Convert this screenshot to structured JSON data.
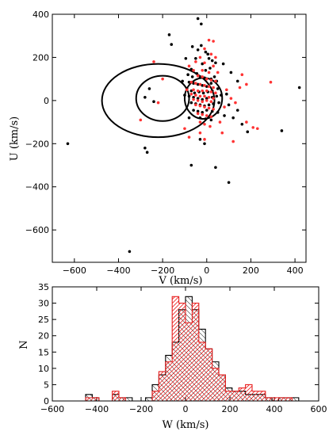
{
  "chart_data": [
    {
      "type": "scatter",
      "xlabel": "V (km/s)",
      "ylabel": "U (km/s)",
      "xlim": [
        -700,
        450
      ],
      "ylim": [
        -750,
        400
      ],
      "xticks": [
        -600,
        -400,
        -200,
        0,
        200,
        400
      ],
      "yticks": [
        -600,
        -400,
        -200,
        0,
        200,
        400
      ],
      "grid": false,
      "colors": {
        "black": "#000000",
        "red": "#ff3333"
      },
      "ellipses": [
        {
          "cx": -220,
          "cy": 0,
          "rx": 255,
          "ry": 170
        },
        {
          "cx": -200,
          "cy": 10,
          "rx": 120,
          "ry": 105
        },
        {
          "cx": -15,
          "cy": 10,
          "rx": 85,
          "ry": 95
        }
      ],
      "series": [
        {
          "color": "black",
          "points": [
            [
              -40,
              380
            ],
            [
              -25,
              355
            ],
            [
              -170,
              305
            ],
            [
              -160,
              260
            ],
            [
              -25,
              255
            ],
            [
              -65,
              250
            ],
            [
              -40,
              235
            ],
            [
              -5,
              225
            ],
            [
              5,
              215
            ],
            [
              -95,
              195
            ],
            [
              -50,
              195
            ],
            [
              10,
              195
            ],
            [
              25,
              185
            ],
            [
              -20,
              170
            ],
            [
              40,
              175
            ],
            [
              -70,
              145
            ],
            [
              -5,
              140
            ],
            [
              15,
              150
            ],
            [
              -85,
              120
            ],
            [
              -65,
              110
            ],
            [
              -45,
              125
            ],
            [
              -30,
              110
            ],
            [
              -10,
              105
            ],
            [
              20,
              100
            ],
            [
              35,
              110
            ],
            [
              -110,
              90
            ],
            [
              -80,
              85
            ],
            [
              -60,
              80
            ],
            [
              -40,
              75
            ],
            [
              -20,
              70
            ],
            [
              0,
              65
            ],
            [
              20,
              80
            ],
            [
              45,
              90
            ],
            [
              -90,
              55
            ],
            [
              -70,
              45
            ],
            [
              -55,
              35
            ],
            [
              -35,
              40
            ],
            [
              -15,
              35
            ],
            [
              5,
              40
            ],
            [
              25,
              45
            ],
            [
              50,
              55
            ],
            [
              -100,
              25
            ],
            [
              -80,
              20
            ],
            [
              -60,
              15
            ],
            [
              -40,
              10
            ],
            [
              -20,
              5
            ],
            [
              0,
              10
            ],
            [
              25,
              15
            ],
            [
              45,
              20
            ],
            [
              65,
              25
            ],
            [
              -70,
              -10
            ],
            [
              -50,
              -15
            ],
            [
              -30,
              -20
            ],
            [
              -10,
              -25
            ],
            [
              10,
              -20
            ],
            [
              30,
              -15
            ],
            [
              55,
              -10
            ],
            [
              -60,
              -45
            ],
            [
              -40,
              -50
            ],
            [
              -20,
              -55
            ],
            [
              0,
              -45
            ],
            [
              25,
              -50
            ],
            [
              50,
              -55
            ],
            [
              -30,
              -80
            ],
            [
              -5,
              -85
            ],
            [
              20,
              -90
            ],
            [
              -80,
              -80
            ],
            [
              80,
              -70
            ],
            [
              120,
              -80
            ],
            [
              -260,
              55
            ],
            [
              -280,
              15
            ],
            [
              -240,
              -5
            ],
            [
              90,
              30
            ],
            [
              100,
              -20
            ],
            [
              140,
              -45
            ],
            [
              160,
              -110
            ],
            [
              185,
              -145
            ],
            [
              340,
              -140
            ],
            [
              420,
              60
            ],
            [
              -630,
              -200
            ],
            [
              -280,
              -220
            ],
            [
              -270,
              -240
            ],
            [
              -70,
              -300
            ],
            [
              40,
              -310
            ],
            [
              100,
              -380
            ],
            [
              -350,
              -700
            ],
            [
              -10,
              -200
            ],
            [
              -30,
              -180
            ],
            [
              140,
              90
            ],
            [
              110,
              130
            ],
            [
              75,
              170
            ]
          ]
        },
        {
          "color": "red",
          "points": [
            [
              10,
              280
            ],
            [
              30,
              275
            ],
            [
              -10,
              240
            ],
            [
              20,
              215
            ],
            [
              -30,
              200
            ],
            [
              40,
              200
            ],
            [
              -50,
              180
            ],
            [
              -10,
              175
            ],
            [
              30,
              160
            ],
            [
              -80,
              160
            ],
            [
              -60,
              140
            ],
            [
              -20,
              140
            ],
            [
              10,
              130
            ],
            [
              50,
              130
            ],
            [
              -40,
              115
            ],
            [
              -20,
              110
            ],
            [
              0,
              100
            ],
            [
              20,
              95
            ],
            [
              40,
              90
            ],
            [
              -70,
              85
            ],
            [
              -50,
              80
            ],
            [
              -30,
              75
            ],
            [
              -10,
              70
            ],
            [
              10,
              65
            ],
            [
              30,
              60
            ],
            [
              -90,
              50
            ],
            [
              -60,
              50
            ],
            [
              -40,
              45
            ],
            [
              -20,
              45
            ],
            [
              0,
              45
            ],
            [
              20,
              40
            ],
            [
              40,
              35
            ],
            [
              -70,
              30
            ],
            [
              -50,
              25
            ],
            [
              -30,
              20
            ],
            [
              -10,
              20
            ],
            [
              10,
              15
            ],
            [
              30,
              10
            ],
            [
              -60,
              5
            ],
            [
              -40,
              0
            ],
            [
              -20,
              -5
            ],
            [
              0,
              0
            ],
            [
              20,
              -5
            ],
            [
              -50,
              -20
            ],
            [
              -30,
              -25
            ],
            [
              -10,
              -30
            ],
            [
              10,
              -35
            ],
            [
              30,
              -40
            ],
            [
              -40,
              -60
            ],
            [
              -20,
              -65
            ],
            [
              0,
              -70
            ],
            [
              20,
              -75
            ],
            [
              -30,
              -100
            ],
            [
              -10,
              -110
            ],
            [
              15,
              -120
            ],
            [
              60,
              -100
            ],
            [
              -240,
              180
            ],
            [
              -200,
              100
            ],
            [
              -220,
              -10
            ],
            [
              -300,
              -90
            ],
            [
              80,
              -30
            ],
            [
              130,
              -10
            ],
            [
              180,
              -100
            ],
            [
              210,
              -125
            ],
            [
              230,
              -130
            ],
            [
              290,
              85
            ],
            [
              180,
              75
            ],
            [
              150,
              60
            ],
            [
              160,
              120
            ],
            [
              70,
              -150
            ],
            [
              120,
              -190
            ],
            [
              -10,
              -180
            ],
            [
              -80,
              -170
            ],
            [
              -30,
              -150
            ],
            [
              -100,
              -130
            ],
            [
              90,
              50
            ],
            [
              110,
              10
            ]
          ]
        }
      ]
    },
    {
      "type": "bar",
      "histtype": "step",
      "xlabel": "W (km/s)",
      "ylabel": "N",
      "xlim": [
        -600,
        600
      ],
      "ylim": [
        0,
        35
      ],
      "xticks": [
        -600,
        -400,
        -200,
        0,
        200,
        400,
        600
      ],
      "yticks": [
        0,
        5,
        10,
        15,
        20,
        25,
        30,
        35
      ],
      "bin_edges": [
        -600,
        -570,
        -540,
        -510,
        -480,
        -450,
        -420,
        -390,
        -360,
        -330,
        -300,
        -270,
        -240,
        -210,
        -180,
        -150,
        -120,
        -90,
        -60,
        -30,
        0,
        30,
        60,
        90,
        120,
        150,
        180,
        210,
        240,
        270,
        300,
        330,
        360,
        390,
        420,
        450,
        480,
        510,
        540,
        570,
        600
      ],
      "series": [
        {
          "color": "black",
          "hatch": "\\\\",
          "values": [
            0,
            0,
            0,
            0,
            0,
            2,
            1,
            0,
            0,
            2,
            1,
            1,
            0,
            0,
            1,
            5,
            8,
            14,
            18,
            28,
            32,
            28,
            22,
            16,
            12,
            8,
            4,
            3,
            3,
            2,
            2,
            2,
            1,
            0,
            1,
            1,
            1,
            0,
            0,
            0
          ]
        },
        {
          "color": "red",
          "hatch": "////",
          "values": [
            0,
            0,
            0,
            0,
            0,
            1,
            1,
            0,
            0,
            3,
            1,
            0,
            0,
            0,
            0,
            3,
            9,
            12,
            32,
            30,
            24,
            30,
            18,
            16,
            10,
            8,
            3,
            3,
            4,
            5,
            3,
            3,
            1,
            1,
            1,
            1,
            0,
            0,
            0,
            0
          ]
        }
      ]
    }
  ]
}
